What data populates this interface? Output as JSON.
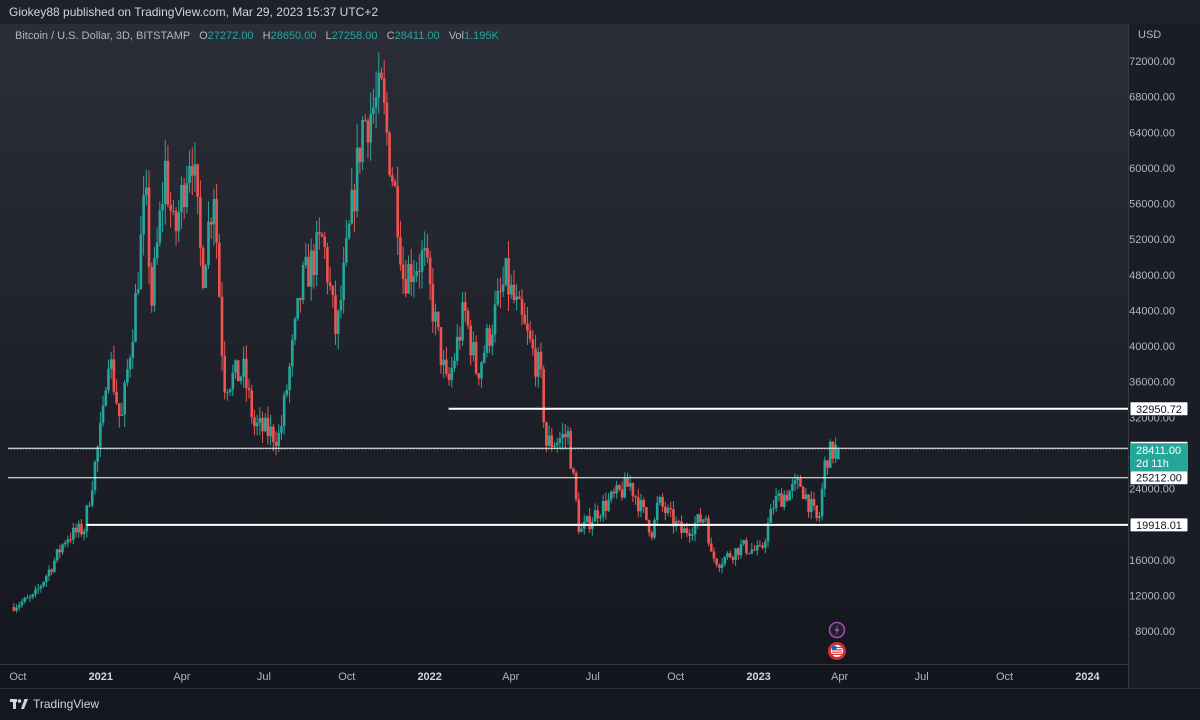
{
  "header": {
    "publisher_line": "Giokey88 published on TradingView.com, Mar 29, 2023 15:37 UTC+2"
  },
  "legend": {
    "symbol": "Bitcoin / U.S. Dollar, 3D, BITSTAMP",
    "open_label": "O",
    "open": "27272.00",
    "high_label": "H",
    "high": "28650.00",
    "low_label": "L",
    "low": "27258.00",
    "close_label": "C",
    "close": "28411.00",
    "vol_label": "Vol",
    "vol": "1.195K"
  },
  "footer": {
    "brand": "TradingView"
  },
  "colors": {
    "background": "#131722",
    "up": "#26a69a",
    "down": "#ef5350",
    "level": "#ffffff",
    "text": "#b2b5be"
  },
  "icons": [
    "lightning-event-icon",
    "us-flag-event-icon"
  ],
  "chart_data": {
    "type": "candlestick",
    "currency_label": "USD",
    "x_ticks": [
      "Oct",
      "2021",
      "Apr",
      "Jul",
      "Oct",
      "2022",
      "Apr",
      "Jul",
      "Oct",
      "2023",
      "Apr",
      "Jul",
      "Oct",
      "2024"
    ],
    "y_ticks": [
      "8000.00",
      "12000.00",
      "16000.00",
      "20000.00",
      "24000.00",
      "28000.00",
      "32000.00",
      "36000.00",
      "40000.00",
      "44000.00",
      "48000.00",
      "52000.00",
      "56000.00",
      "60000.00",
      "64000.00",
      "68000.00",
      "72000.00"
    ],
    "ylim": [
      4000,
      75000
    ],
    "price_path": [
      [
        "2020-09-25",
        10700
      ],
      [
        "2020-10-20",
        11800
      ],
      [
        "2020-11-10",
        15500
      ],
      [
        "2020-11-25",
        18500
      ],
      [
        "2020-12-15",
        19500
      ],
      [
        "2021-01-05",
        32000
      ],
      [
        "2021-01-10",
        40000
      ],
      [
        "2021-01-25",
        31000
      ],
      [
        "2021-02-10",
        45000
      ],
      [
        "2021-02-21",
        57000
      ],
      [
        "2021-02-28",
        45000
      ],
      [
        "2021-03-15",
        60000
      ],
      [
        "2021-03-25",
        52000
      ],
      [
        "2021-04-13",
        63000
      ],
      [
        "2021-04-25",
        48000
      ],
      [
        "2021-05-08",
        58000
      ],
      [
        "2021-05-19",
        36000
      ],
      [
        "2021-06-10",
        37000
      ],
      [
        "2021-06-22",
        31000
      ],
      [
        "2021-07-20",
        29800
      ],
      [
        "2021-08-14",
        47000
      ],
      [
        "2021-09-06",
        52000
      ],
      [
        "2021-09-21",
        41000
      ],
      [
        "2021-10-20",
        65000
      ],
      [
        "2021-11-10",
        68000
      ],
      [
        "2021-11-28",
        55000
      ],
      [
        "2021-12-04",
        48000
      ],
      [
        "2021-12-27",
        50000
      ],
      [
        "2022-01-22",
        35000
      ],
      [
        "2022-02-10",
        44000
      ],
      [
        "2022-02-24",
        37000
      ],
      [
        "2022-03-28",
        47500
      ],
      [
        "2022-05-05",
        37000
      ],
      [
        "2022-05-12",
        29000
      ],
      [
        "2022-06-05",
        30000
      ],
      [
        "2022-06-18",
        19000
      ],
      [
        "2022-07-08",
        21500
      ],
      [
        "2022-08-13",
        24500
      ],
      [
        "2022-09-07",
        19000
      ],
      [
        "2022-09-13",
        22500
      ],
      [
        "2022-10-10",
        19000
      ],
      [
        "2022-11-06",
        21000
      ],
      [
        "2022-11-10",
        16500
      ],
      [
        "2022-11-20",
        15800
      ],
      [
        "2022-12-15",
        17500
      ],
      [
        "2023-01-05",
        16800
      ],
      [
        "2023-01-20",
        22500
      ],
      [
        "2023-02-18",
        24500
      ],
      [
        "2023-03-10",
        20000
      ],
      [
        "2023-03-18",
        27500
      ],
      [
        "2023-03-29",
        28411
      ]
    ],
    "horizontal_levels": [
      {
        "value": 32950.72,
        "label": "32950.72",
        "from": "2022-01-22",
        "style": "ray"
      },
      {
        "value": 28513.0,
        "label": "28513.00",
        "from": "2020-09-20",
        "style": "line"
      },
      {
        "value": 25212.0,
        "label": "25212.00",
        "from": "2020-09-20",
        "style": "line"
      },
      {
        "value": 19918.01,
        "label": "19918.01",
        "from": "2020-12-16",
        "style": "ray"
      }
    ],
    "last_price": {
      "value": 28411.0,
      "label": "28411.00",
      "countdown": "2d 11h"
    }
  }
}
